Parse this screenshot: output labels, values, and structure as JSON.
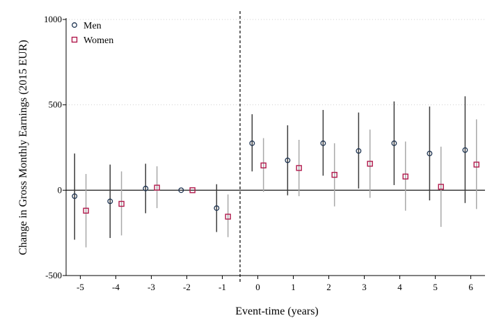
{
  "chart_data": {
    "type": "scatter",
    "title": "",
    "xlabel": "Event-time (years)",
    "ylabel": "Change in Gross Monthly Earnings (2015 EUR)",
    "xlim": [
      -5.4,
      6.4
    ],
    "ylim": [
      -500,
      1000
    ],
    "x_ticks": [
      -5,
      -4,
      -3,
      -2,
      -1,
      0,
      1,
      2,
      3,
      4,
      5,
      6
    ],
    "y_ticks": [
      -500,
      0,
      500,
      1000
    ],
    "event_line_x": -0.5,
    "reference_line_y": 0,
    "grid": "horizontal-dotted",
    "legend_position": "top-left",
    "colors": {
      "men": "#1f3552",
      "women": "#b0184b",
      "men_ci": "#3c3c3c",
      "women_ci": "#a8a8a8"
    },
    "series": [
      {
        "name": "Men",
        "marker": "circle",
        "x": [
          -5,
          -4,
          -3,
          -2,
          -1,
          0,
          1,
          2,
          3,
          4,
          5,
          6
        ],
        "y": [
          -35,
          -65,
          10,
          0,
          -105,
          275,
          175,
          275,
          230,
          275,
          215,
          235
        ],
        "ci_low": [
          -290,
          -280,
          -135,
          0,
          -245,
          110,
          -30,
          85,
          10,
          30,
          -60,
          -75
        ],
        "ci_high": [
          215,
          150,
          155,
          0,
          35,
          445,
          380,
          470,
          455,
          520,
          490,
          550
        ]
      },
      {
        "name": "Women",
        "marker": "square",
        "x": [
          -5,
          -4,
          -3,
          -2,
          -1,
          0,
          1,
          2,
          3,
          4,
          5,
          6
        ],
        "y": [
          -120,
          -80,
          15,
          0,
          -155,
          145,
          130,
          90,
          155,
          80,
          20,
          150
        ],
        "ci_low": [
          -335,
          -265,
          -105,
          0,
          -275,
          -10,
          -35,
          -95,
          -45,
          -120,
          -215,
          -110
        ],
        "ci_high": [
          95,
          110,
          140,
          0,
          -25,
          305,
          295,
          275,
          355,
          285,
          255,
          415
        ]
      }
    ]
  }
}
